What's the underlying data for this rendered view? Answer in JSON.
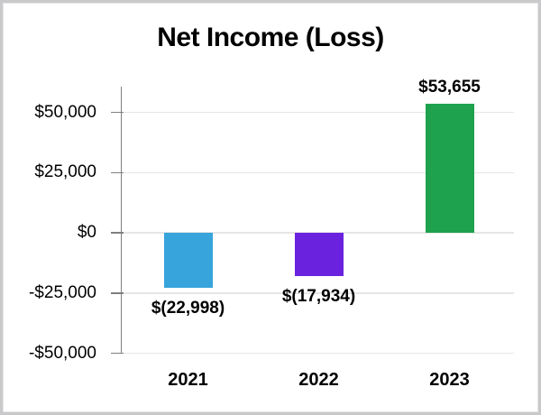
{
  "chart_data": {
    "type": "bar",
    "title": "Net Income (Loss)",
    "categories": [
      "2021",
      "2022",
      "2023"
    ],
    "values": [
      -22998,
      -17934,
      53655
    ],
    "data_labels": [
      "$(22,998)",
      "$(17,934)",
      "$53,655"
    ],
    "bar_colors": [
      "#37a4db",
      "#6a22df",
      "#1ea24d"
    ],
    "yticks": [
      {
        "value": 50000,
        "label": "$50,000"
      },
      {
        "value": 25000,
        "label": "$25,000"
      },
      {
        "value": 0,
        "label": "$0"
      },
      {
        "value": -25000,
        "label": "-$25,000"
      },
      {
        "value": -50000,
        "label": "-$50,000"
      }
    ],
    "ylim": [
      -50000,
      50000
    ],
    "xlabel": "",
    "ylabel": "",
    "grid": "horizontal",
    "legend": "none",
    "colors": {
      "gridline": "#e6e6e6",
      "axis": "#7f7f7f",
      "text": "#000000",
      "background": "#ffffff",
      "frame_border": "#c9c9cb"
    }
  }
}
